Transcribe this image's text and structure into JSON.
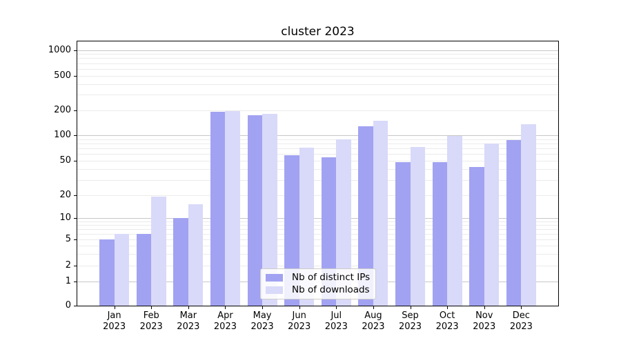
{
  "chart_data": {
    "type": "bar",
    "title": "cluster 2023",
    "categories": [
      "Jan",
      "Feb",
      "Mar",
      "Apr",
      "May",
      "Jun",
      "Jul",
      "Aug",
      "Sep",
      "Oct",
      "Nov",
      "Dec"
    ],
    "x_tick_year": "2023",
    "series": [
      {
        "name": "Nb of distinct IPs",
        "color": "#a2a2f2",
        "values": [
          5,
          6,
          10,
          190,
          175,
          58,
          55,
          128,
          48,
          48,
          42,
          88
        ]
      },
      {
        "name": "Nb of downloads",
        "color": "#d9d9f9",
        "values": [
          6,
          19,
          15,
          195,
          180,
          72,
          90,
          150,
          73,
          99,
          80,
          135
        ]
      }
    ],
    "y_axis": {
      "scale": "symlog",
      "ticks": [
        0,
        1,
        2,
        5,
        10,
        20,
        50,
        100,
        200,
        500,
        1000
      ],
      "top_value": 1275
    },
    "grid": {
      "on": true,
      "major_at": [
        1,
        10,
        100,
        1000
      ],
      "major_color": "#c6c6c6",
      "minor_color": "#ebebeb"
    },
    "legend": {
      "position": "lower-center-inside",
      "entries": [
        "Nb of distinct IPs",
        "Nb of downloads"
      ]
    }
  }
}
